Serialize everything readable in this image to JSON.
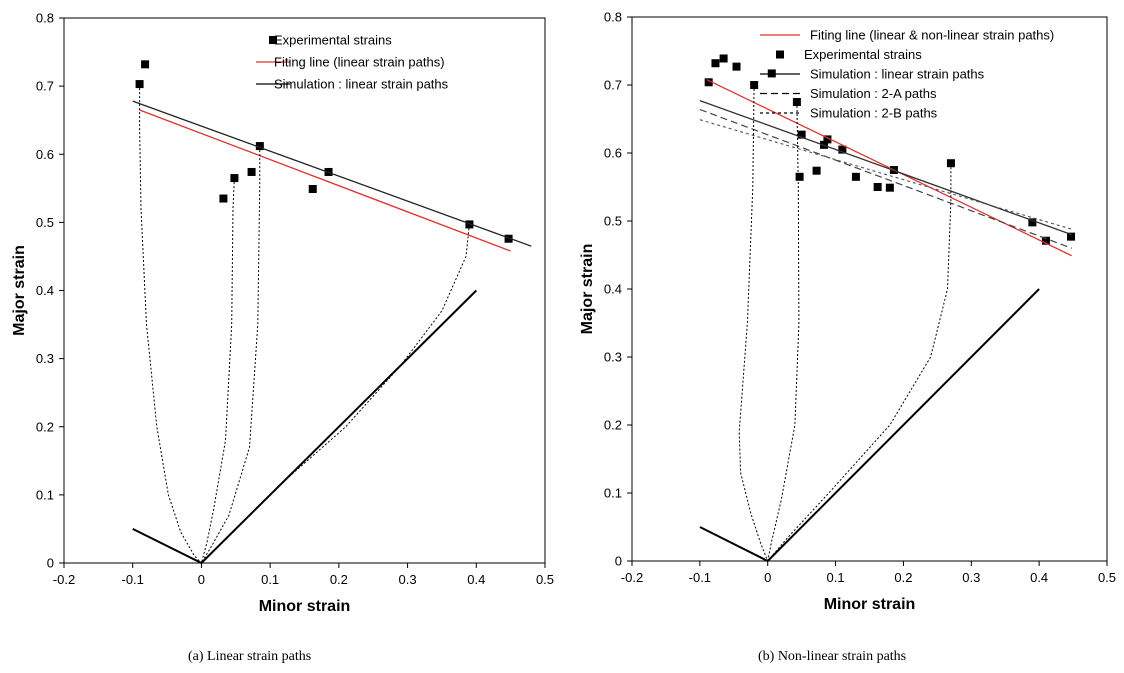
{
  "chart_data": [
    {
      "type": "scatter",
      "title": "",
      "xlabel": "Minor strain",
      "ylabel": "Major strain",
      "xlim": [
        -0.2,
        0.5
      ],
      "ylim": [
        0,
        0.8
      ],
      "xticks": [
        "-0.2",
        "-0.1",
        "0",
        "0.1",
        "0.2",
        "0.3",
        "0.4",
        "0.5"
      ],
      "yticks": [
        "0",
        "0.1",
        "0.2",
        "0.3",
        "0.4",
        "0.5",
        "0.6",
        "0.7",
        "0.8"
      ],
      "caption": "(a)  Linear strain paths",
      "legend": [
        {
          "label": "Experimental strains",
          "style": "square",
          "color": "#000000"
        },
        {
          "label": "Fiting line (linear strain paths)",
          "style": "line",
          "color": "#e03030"
        },
        {
          "label": "Simulation : linear strain paths",
          "style": "line",
          "color": "#000000"
        }
      ],
      "series": [
        {
          "name": "Experimental strains",
          "kind": "points",
          "points": [
            [
              -0.09,
              0.703
            ],
            [
              -0.082,
              0.732
            ],
            [
              0.032,
              0.535
            ],
            [
              0.048,
              0.565
            ],
            [
              0.073,
              0.574
            ],
            [
              0.085,
              0.612
            ],
            [
              0.162,
              0.549
            ],
            [
              0.185,
              0.574
            ],
            [
              0.39,
              0.497
            ],
            [
              0.447,
              0.476
            ]
          ]
        },
        {
          "name": "Fiting line (linear strain paths)",
          "kind": "line",
          "color": "#e03030",
          "points": [
            [
              -0.09,
              0.665
            ],
            [
              0.45,
              0.458
            ]
          ]
        },
        {
          "name": "Simulation : linear strain paths",
          "kind": "line",
          "color": "#222222",
          "points": [
            [
              -0.1,
              0.678
            ],
            [
              0.48,
              0.465
            ]
          ]
        },
        {
          "kind": "dotted",
          "points": [
            [
              -0.09,
              0.703
            ],
            [
              -0.09,
              0.64
            ],
            [
              -0.088,
              0.52
            ],
            [
              -0.08,
              0.35
            ],
            [
              -0.065,
              0.2
            ],
            [
              -0.048,
              0.1
            ],
            [
              -0.03,
              0.045
            ],
            [
              -0.01,
              0.01
            ],
            [
              0,
              0
            ]
          ]
        },
        {
          "kind": "dotted",
          "points": [
            [
              0.048,
              0.565
            ],
            [
              0.046,
              0.52
            ],
            [
              0.044,
              0.35
            ],
            [
              0.035,
              0.18
            ],
            [
              0.018,
              0.08
            ],
            [
              0.008,
              0.03
            ],
            [
              0,
              0
            ]
          ]
        },
        {
          "kind": "dotted",
          "points": [
            [
              0.085,
              0.612
            ],
            [
              0.085,
              0.56
            ],
            [
              0.082,
              0.35
            ],
            [
              0.07,
              0.17
            ],
            [
              0.04,
              0.07
            ],
            [
              0.015,
              0.025
            ],
            [
              0,
              0
            ]
          ]
        },
        {
          "kind": "dotted",
          "points": [
            [
              0.39,
              0.497
            ],
            [
              0.385,
              0.45
            ],
            [
              0.35,
              0.37
            ],
            [
              0.29,
              0.29
            ],
            [
              0.21,
              0.2
            ],
            [
              0.12,
              0.12
            ],
            [
              0.05,
              0.05
            ],
            [
              0.015,
              0.015
            ],
            [
              0,
              0
            ]
          ]
        },
        {
          "kind": "solid",
          "points": [
            [
              -0.1,
              0.05
            ],
            [
              0,
              0
            ],
            [
              0.4,
              0.4
            ]
          ]
        }
      ]
    },
    {
      "type": "scatter",
      "title": "",
      "xlabel": "Minor strain",
      "ylabel": "Major strain",
      "xlim": [
        -0.2,
        0.5
      ],
      "ylim": [
        0,
        0.8
      ],
      "xticks": [
        "-0.2",
        "-0.1",
        "0",
        "0.1",
        "0.2",
        "0.3",
        "0.4",
        "0.5"
      ],
      "yticks": [
        "0",
        "0.1",
        "0.2",
        "0.3",
        "0.4",
        "0.5",
        "0.6",
        "0.7",
        "0.8"
      ],
      "caption": "(b)  Non-linear strain paths",
      "legend": [
        {
          "label": "Fiting line (linear & non-linear  strain paths)",
          "style": "line",
          "color": "#e03030"
        },
        {
          "label": "Experimental strains",
          "style": "square",
          "color": "#000000"
        },
        {
          "label": "Simulation : linear strain paths",
          "style": "line",
          "color": "#000000"
        },
        {
          "label": "Simulation : 2-A paths",
          "style": "dash",
          "color": "#000000"
        },
        {
          "label": "Simulation : 2-B paths",
          "style": "shortdash",
          "color": "#000000"
        }
      ],
      "series": [
        {
          "name": "Experimental strains",
          "kind": "points",
          "points": [
            [
              -0.087,
              0.704
            ],
            [
              -0.077,
              0.732
            ],
            [
              -0.065,
              0.739
            ],
            [
              -0.046,
              0.727
            ],
            [
              -0.02,
              0.7
            ],
            [
              0.006,
              0.717
            ],
            [
              0.043,
              0.675
            ],
            [
              0.047,
              0.565
            ],
            [
              0.05,
              0.627
            ],
            [
              0.072,
              0.574
            ],
            [
              0.083,
              0.612
            ],
            [
              0.088,
              0.62
            ],
            [
              0.11,
              0.605
            ],
            [
              0.13,
              0.565
            ],
            [
              0.162,
              0.55
            ],
            [
              0.18,
              0.549
            ],
            [
              0.186,
              0.575
            ],
            [
              0.27,
              0.585
            ],
            [
              0.39,
              0.498
            ],
            [
              0.41,
              0.471
            ],
            [
              0.447,
              0.477
            ]
          ]
        },
        {
          "name": "Fiting line (linear & non-linear  strain paths)",
          "kind": "line",
          "color": "#e03030",
          "points": [
            [
              -0.09,
              0.708
            ],
            [
              0.448,
              0.449
            ]
          ]
        },
        {
          "name": "Simulation : linear strain paths",
          "kind": "line",
          "color": "#333333",
          "points": [
            [
              -0.1,
              0.677
            ],
            [
              0.448,
              0.48
            ]
          ]
        },
        {
          "name": "Simulation : 2-A paths",
          "kind": "dash",
          "color": "#444444",
          "points": [
            [
              -0.1,
              0.664
            ],
            [
              0.448,
              0.46
            ]
          ]
        },
        {
          "name": "Simulation : 2-B paths",
          "kind": "shortdash",
          "color": "#555555",
          "points": [
            [
              -0.1,
              0.649
            ],
            [
              0.448,
              0.488
            ]
          ]
        },
        {
          "kind": "dotted",
          "points": [
            [
              -0.02,
              0.7
            ],
            [
              -0.022,
              0.55
            ],
            [
              -0.03,
              0.35
            ],
            [
              -0.042,
              0.19
            ],
            [
              -0.04,
              0.13
            ],
            [
              -0.025,
              0.07
            ],
            [
              -0.01,
              0.025
            ],
            [
              0,
              0
            ]
          ]
        },
        {
          "kind": "dotted",
          "points": [
            [
              0.043,
              0.675
            ],
            [
              0.045,
              0.55
            ],
            [
              0.046,
              0.35
            ],
            [
              0.04,
              0.2
            ],
            [
              0.02,
              0.09
            ],
            [
              0.006,
              0.03
            ],
            [
              0,
              0
            ]
          ]
        },
        {
          "kind": "dotted",
          "points": [
            [
              0.27,
              0.585
            ],
            [
              0.27,
              0.53
            ],
            [
              0.265,
              0.4
            ],
            [
              0.24,
              0.3
            ],
            [
              0.18,
              0.2
            ],
            [
              0.09,
              0.1
            ],
            [
              0.03,
              0.035
            ],
            [
              0,
              0
            ]
          ]
        },
        {
          "kind": "solid",
          "points": [
            [
              -0.1,
              0.05
            ],
            [
              0,
              0
            ],
            [
              0.4,
              0.4
            ]
          ]
        }
      ]
    }
  ]
}
